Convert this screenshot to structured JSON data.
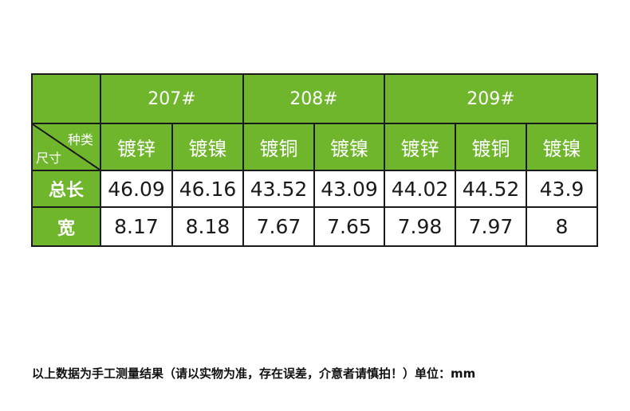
{
  "table": {
    "groups": [
      "207#",
      "208#",
      "209#"
    ],
    "corner": {
      "top_right": "种类",
      "bottom_left": "尺寸"
    },
    "types": [
      "镀锌",
      "镀镍",
      "镀铜",
      "镀镍",
      "镀锌",
      "镀铜",
      "镀镍"
    ],
    "rows": [
      {
        "label": "总长",
        "values": [
          "46.09",
          "46.16",
          "43.52",
          "43.09",
          "44.02",
          "44.52",
          "43.9"
        ]
      },
      {
        "label": "宽",
        "values": [
          "8.17",
          "8.18",
          "7.67",
          "7.65",
          "7.98",
          "7.97",
          "8"
        ]
      }
    ]
  },
  "footnote": "以上数据为手工测量结果（请以实物为准，存在误差，介意者请慎拍！）单位：mm",
  "colors": {
    "header_green": "#70b62c",
    "border": "#1a1a1a",
    "text": "#1a1a1a"
  }
}
